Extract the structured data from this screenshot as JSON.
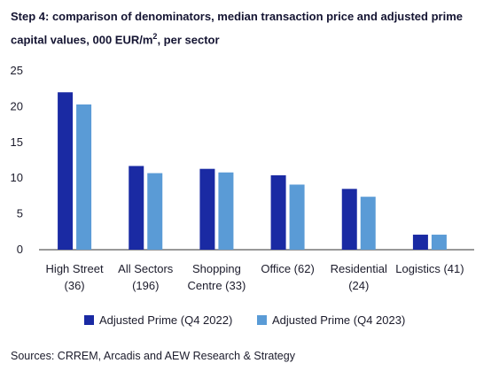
{
  "title_line1": "Step 4: comparison of denominators, median transaction price and adjusted prime",
  "title_line2_pre": "capital values, 000 EUR/m",
  "title_line2_sup": "2",
  "title_line2_post": ", per sector",
  "source": "Sources: CRREM, Arcadis and AEW Research & Strategy",
  "colors": {
    "series1": "#1a2aa3",
    "series2": "#5a9bd6",
    "axis": "#333333"
  },
  "chart_data": {
    "type": "bar",
    "categories": [
      [
        "High Street",
        "(36)"
      ],
      [
        "All Sectors",
        "(196)"
      ],
      [
        "Shopping",
        "Centre (33)"
      ],
      [
        "Office (62)"
      ],
      [
        "Residential",
        "(24)"
      ],
      [
        "Logistics (41)"
      ]
    ],
    "series": [
      {
        "name": "Adjusted Prime (Q4 2022)",
        "values": [
          22.0,
          11.7,
          11.3,
          10.4,
          8.5,
          2.1
        ]
      },
      {
        "name": "Adjusted Prime (Q4 2023)",
        "values": [
          20.3,
          10.7,
          10.8,
          9.1,
          7.4,
          2.1
        ]
      }
    ],
    "ylim": [
      0,
      25
    ],
    "yticks": [
      0,
      5,
      10,
      15,
      20,
      25
    ],
    "xlabel": "",
    "ylabel": "",
    "grid": false,
    "legend": "bottom"
  }
}
